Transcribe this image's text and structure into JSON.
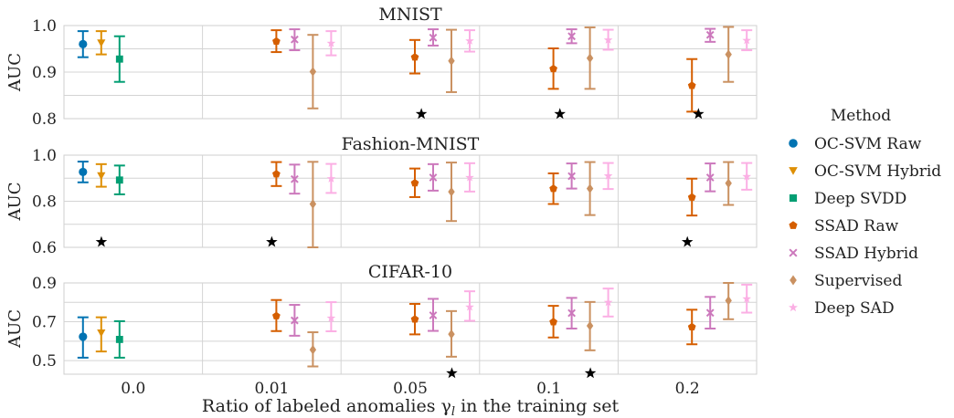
{
  "chart_data": {
    "type": "errorbar",
    "xlabel": "Ratio of labeled anomalies γ",
    "xlabel_sub": "l",
    "xlabel_suffix": " in the training set",
    "categories": [
      "0.0",
      "0.01",
      "0.05",
      "0.1",
      "0.2"
    ],
    "legend": {
      "title": "Method",
      "placement": "right",
      "items": [
        {
          "name": "OC-SVM Raw",
          "color": "#0173b2",
          "marker": "circle"
        },
        {
          "name": "OC-SVM Hybrid",
          "color": "#de8f05",
          "marker": "triangle-down"
        },
        {
          "name": "Deep SVDD",
          "color": "#029e73",
          "marker": "square"
        },
        {
          "name": "SSAD Raw",
          "color": "#d55e00",
          "marker": "pentagon"
        },
        {
          "name": "SSAD Hybrid",
          "color": "#cc78bc",
          "marker": "x"
        },
        {
          "name": "Supervised",
          "color": "#ca9161",
          "marker": "diamond"
        },
        {
          "name": "Deep SAD",
          "color": "#fbafe4",
          "marker": "star"
        }
      ]
    },
    "panels": [
      {
        "title": "MNIST",
        "ylabel": "AUC",
        "ylim": [
          0.8,
          1.0
        ],
        "yticks": [
          0.8,
          0.9,
          1.0
        ],
        "ytick_labels": [
          "0.8",
          "0.9",
          "1.0"
        ],
        "grid": true,
        "best_marker_category": [
          null,
          null,
          "0.05",
          "0.1",
          "0.2"
        ],
        "best_marker_value": 0.81,
        "series": [
          {
            "name": "OC-SVM Raw",
            "values": [
              {
                "x": "0.0",
                "mean": 0.96,
                "lo": 0.932,
                "hi": 0.988
              }
            ]
          },
          {
            "name": "OC-SVM Hybrid",
            "values": [
              {
                "x": "0.0",
                "mean": 0.963,
                "lo": 0.938,
                "hi": 0.988
              }
            ]
          },
          {
            "name": "Deep SVDD",
            "values": [
              {
                "x": "0.0",
                "mean": 0.928,
                "lo": 0.879,
                "hi": 0.977
              }
            ]
          },
          {
            "name": "SSAD Raw",
            "values": [
              {
                "x": "0.01",
                "mean": 0.966,
                "lo": 0.943,
                "hi": 0.99
              },
              {
                "x": "0.05",
                "mean": 0.932,
                "lo": 0.897,
                "hi": 0.969
              },
              {
                "x": "0.1",
                "mean": 0.907,
                "lo": 0.864,
                "hi": 0.951
              },
              {
                "x": "0.2",
                "mean": 0.871,
                "lo": 0.815,
                "hi": 0.928
              }
            ]
          },
          {
            "name": "SSAD Hybrid",
            "values": [
              {
                "x": "0.01",
                "mean": 0.97,
                "lo": 0.947,
                "hi": 0.992
              },
              {
                "x": "0.05",
                "mean": 0.974,
                "lo": 0.957,
                "hi": 0.992
              },
              {
                "x": "0.1",
                "mean": 0.977,
                "lo": 0.962,
                "hi": 0.992
              },
              {
                "x": "0.2",
                "mean": 0.98,
                "lo": 0.965,
                "hi": 0.993
              }
            ]
          },
          {
            "name": "Supervised",
            "values": [
              {
                "x": "0.01",
                "mean": 0.901,
                "lo": 0.822,
                "hi": 0.98
              },
              {
                "x": "0.05",
                "mean": 0.924,
                "lo": 0.857,
                "hi": 0.991
              },
              {
                "x": "0.1",
                "mean": 0.93,
                "lo": 0.864,
                "hi": 0.996
              },
              {
                "x": "0.2",
                "mean": 0.938,
                "lo": 0.879,
                "hi": 0.997
              }
            ]
          },
          {
            "name": "Deep SAD",
            "values": [
              {
                "x": "0.01",
                "mean": 0.962,
                "lo": 0.936,
                "hi": 0.988
              },
              {
                "x": "0.05",
                "mean": 0.967,
                "lo": 0.944,
                "hi": 0.99
              },
              {
                "x": "0.1",
                "mean": 0.969,
                "lo": 0.948,
                "hi": 0.991
              },
              {
                "x": "0.2",
                "mean": 0.968,
                "lo": 0.947,
                "hi": 0.99
              }
            ]
          }
        ]
      },
      {
        "title": "Fashion-MNIST",
        "ylabel": "AUC",
        "ylim": [
          0.6,
          1.0
        ],
        "yticks": [
          0.6,
          0.8,
          1.0
        ],
        "ytick_labels": [
          "0.6",
          "0.8",
          "1.0"
        ],
        "grid": true,
        "best_marker_category": [
          "0.0",
          "0.01",
          null,
          null,
          "0.2"
        ],
        "best_marker_value": 0.623,
        "series": [
          {
            "name": "OC-SVM Raw",
            "values": [
              {
                "x": "0.0",
                "mean": 0.927,
                "lo": 0.882,
                "hi": 0.972
              }
            ]
          },
          {
            "name": "OC-SVM Hybrid",
            "values": [
              {
                "x": "0.0",
                "mean": 0.911,
                "lo": 0.863,
                "hi": 0.961
              }
            ]
          },
          {
            "name": "Deep SVDD",
            "values": [
              {
                "x": "0.0",
                "mean": 0.892,
                "lo": 0.83,
                "hi": 0.955
              }
            ]
          },
          {
            "name": "SSAD Raw",
            "values": [
              {
                "x": "0.01",
                "mean": 0.918,
                "lo": 0.866,
                "hi": 0.97
              },
              {
                "x": "0.05",
                "mean": 0.879,
                "lo": 0.818,
                "hi": 0.942
              },
              {
                "x": "0.1",
                "mean": 0.855,
                "lo": 0.788,
                "hi": 0.921
              },
              {
                "x": "0.2",
                "mean": 0.817,
                "lo": 0.738,
                "hi": 0.898
              }
            ]
          },
          {
            "name": "SSAD Hybrid",
            "values": [
              {
                "x": "0.01",
                "mean": 0.896,
                "lo": 0.833,
                "hi": 0.959
              },
              {
                "x": "0.05",
                "mean": 0.903,
                "lo": 0.846,
                "hi": 0.961
              },
              {
                "x": "0.1",
                "mean": 0.909,
                "lo": 0.855,
                "hi": 0.964
              },
              {
                "x": "0.2",
                "mean": 0.903,
                "lo": 0.843,
                "hi": 0.964
              }
            ]
          },
          {
            "name": "Supervised",
            "values": [
              {
                "x": "0.01",
                "mean": 0.788,
                "lo": 0.6,
                "hi": 0.971
              },
              {
                "x": "0.05",
                "mean": 0.841,
                "lo": 0.714,
                "hi": 0.968
              },
              {
                "x": "0.1",
                "mean": 0.855,
                "lo": 0.74,
                "hi": 0.97
              },
              {
                "x": "0.2",
                "mean": 0.878,
                "lo": 0.784,
                "hi": 0.97
              }
            ]
          },
          {
            "name": "Deep SAD",
            "values": [
              {
                "x": "0.01",
                "mean": 0.898,
                "lo": 0.836,
                "hi": 0.962
              },
              {
                "x": "0.05",
                "mean": 0.903,
                "lo": 0.842,
                "hi": 0.965
              },
              {
                "x": "0.1",
                "mean": 0.91,
                "lo": 0.853,
                "hi": 0.966
              },
              {
                "x": "0.2",
                "mean": 0.907,
                "lo": 0.85,
                "hi": 0.966
              }
            ]
          }
        ]
      },
      {
        "title": "CIFAR-10",
        "ylabel": "AUC",
        "ylim": [
          0.43,
          0.9
        ],
        "yticks": [
          0.5,
          0.7,
          0.9
        ],
        "ytick_labels": [
          "0.5",
          "0.7",
          "0.9"
        ],
        "grid": true,
        "best_marker_category": [
          null,
          null,
          "0.05",
          "0.1",
          null
        ],
        "best_marker_value": 0.435,
        "series": [
          {
            "name": "OC-SVM Raw",
            "values": [
              {
                "x": "0.0",
                "mean": 0.623,
                "lo": 0.515,
                "hi": 0.723
              }
            ]
          },
          {
            "name": "OC-SVM Hybrid",
            "values": [
              {
                "x": "0.0",
                "mean": 0.643,
                "lo": 0.547,
                "hi": 0.723
              }
            ]
          },
          {
            "name": "Deep SVDD",
            "values": [
              {
                "x": "0.0",
                "mean": 0.609,
                "lo": 0.515,
                "hi": 0.703
              }
            ]
          },
          {
            "name": "SSAD Raw",
            "values": [
              {
                "x": "0.01",
                "mean": 0.73,
                "lo": 0.652,
                "hi": 0.812
              },
              {
                "x": "0.05",
                "mean": 0.713,
                "lo": 0.635,
                "hi": 0.792
              },
              {
                "x": "0.1",
                "mean": 0.699,
                "lo": 0.619,
                "hi": 0.782
              },
              {
                "x": "0.2",
                "mean": 0.673,
                "lo": 0.584,
                "hi": 0.762
              }
            ]
          },
          {
            "name": "SSAD Hybrid",
            "values": [
              {
                "x": "0.01",
                "mean": 0.707,
                "lo": 0.628,
                "hi": 0.787
              },
              {
                "x": "0.05",
                "mean": 0.733,
                "lo": 0.653,
                "hi": 0.818
              },
              {
                "x": "0.1",
                "mean": 0.745,
                "lo": 0.665,
                "hi": 0.823
              },
              {
                "x": "0.2",
                "mean": 0.746,
                "lo": 0.665,
                "hi": 0.828
              }
            ]
          },
          {
            "name": "Supervised",
            "values": [
              {
                "x": "0.01",
                "mean": 0.556,
                "lo": 0.47,
                "hi": 0.646
              },
              {
                "x": "0.05",
                "mean": 0.636,
                "lo": 0.52,
                "hi": 0.755
              },
              {
                "x": "0.1",
                "mean": 0.679,
                "lo": 0.553,
                "hi": 0.802
              },
              {
                "x": "0.2",
                "mean": 0.809,
                "lo": 0.713,
                "hi": 0.9
              }
            ]
          },
          {
            "name": "Deep SAD",
            "values": [
              {
                "x": "0.01",
                "mean": 0.719,
                "lo": 0.651,
                "hi": 0.801
              },
              {
                "x": "0.05",
                "mean": 0.776,
                "lo": 0.705,
                "hi": 0.857
              },
              {
                "x": "0.1",
                "mean": 0.8,
                "lo": 0.727,
                "hi": 0.871
              },
              {
                "x": "0.2",
                "mean": 0.818,
                "lo": 0.747,
                "hi": 0.891
              }
            ]
          }
        ]
      }
    ]
  }
}
